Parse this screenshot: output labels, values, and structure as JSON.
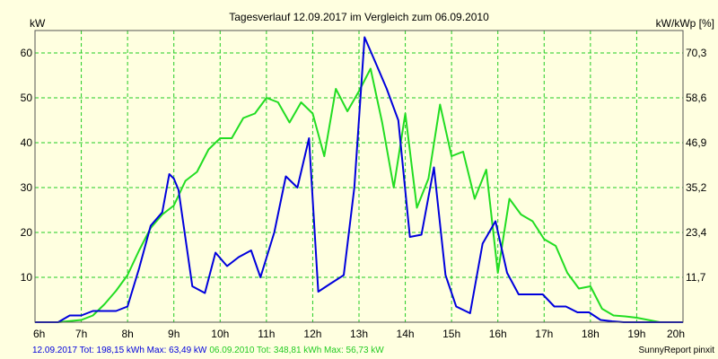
{
  "chart_data": {
    "type": "line",
    "title": "Tagesverlauf 12.09.2017 im Vergleich zum 06.09.2010",
    "ylabel_left": "kW",
    "ylabel_right": "kW/kWp [%]",
    "xlim": [
      6,
      20
    ],
    "ylim": [
      0,
      65
    ],
    "grid": true,
    "x_ticks": [
      {
        "value": 6,
        "label": "6h"
      },
      {
        "value": 7,
        "label": "7h"
      },
      {
        "value": 8,
        "label": "8h"
      },
      {
        "value": 9,
        "label": "9h"
      },
      {
        "value": 10,
        "label": "10h"
      },
      {
        "value": 11,
        "label": "11h"
      },
      {
        "value": 12,
        "label": "12h"
      },
      {
        "value": 13,
        "label": "13h"
      },
      {
        "value": 14,
        "label": "14h"
      },
      {
        "value": 15,
        "label": "15h"
      },
      {
        "value": 16,
        "label": "16h"
      },
      {
        "value": 17,
        "label": "17h"
      },
      {
        "value": 18,
        "label": "18h"
      },
      {
        "value": 19,
        "label": "19h"
      },
      {
        "value": 20,
        "label": "20h"
      }
    ],
    "y_ticks_left": [
      {
        "value": 10,
        "label": "10"
      },
      {
        "value": 20,
        "label": "20"
      },
      {
        "value": 30,
        "label": "30"
      },
      {
        "value": 40,
        "label": "40"
      },
      {
        "value": 50,
        "label": "50"
      },
      {
        "value": 60,
        "label": "60"
      }
    ],
    "y_ticks_right": [
      {
        "value": 10,
        "label": "11,7"
      },
      {
        "value": 20,
        "label": "23,4"
      },
      {
        "value": 30,
        "label": "35,2"
      },
      {
        "value": 40,
        "label": "46,9"
      },
      {
        "value": 50,
        "label": "58,6"
      },
      {
        "value": 60,
        "label": "70,3"
      }
    ],
    "series": [
      {
        "name": "12.09.2017",
        "color": "#0000dd",
        "x": [
          6.0,
          6.5,
          6.75,
          7.0,
          7.25,
          7.5,
          7.75,
          8.0,
          8.25,
          8.5,
          8.75,
          8.9,
          9.0,
          9.1,
          9.4,
          9.67,
          9.9,
          10.15,
          10.4,
          10.67,
          10.87,
          11.17,
          11.42,
          11.67,
          11.92,
          12.12,
          12.37,
          12.67,
          12.9,
          13.12,
          13.35,
          13.6,
          13.85,
          14.1,
          14.35,
          14.62,
          14.87,
          15.1,
          15.4,
          15.67,
          15.95,
          16.2,
          16.45,
          16.7,
          16.97,
          17.22,
          17.47,
          17.72,
          17.97,
          18.22,
          18.47,
          18.72,
          18.97,
          19.22,
          19.47,
          19.72,
          20.0
        ],
        "values": [
          0,
          0,
          1.5,
          1.5,
          2.5,
          2.5,
          2.5,
          3.5,
          12,
          21.5,
          24.5,
          33,
          32,
          29.5,
          8,
          6.5,
          15.5,
          12.5,
          14.5,
          16,
          10,
          20,
          32.5,
          30,
          41,
          6.8,
          8.5,
          10.5,
          30,
          63.5,
          58,
          52,
          45,
          19,
          19.5,
          34.5,
          10.5,
          3.5,
          2,
          17.5,
          22.5,
          11,
          6.2,
          6.2,
          6.2,
          3.5,
          3.5,
          2.2,
          2.2,
          0.5,
          0.2,
          0,
          0,
          0,
          0,
          0,
          0
        ]
      },
      {
        "name": "06.09.2010",
        "color": "#22dd22",
        "x": [
          6.0,
          6.5,
          7.0,
          7.25,
          7.5,
          7.75,
          8.0,
          8.25,
          8.5,
          8.75,
          9.0,
          9.25,
          9.5,
          9.75,
          10.0,
          10.25,
          10.5,
          10.75,
          11.0,
          11.25,
          11.5,
          11.75,
          12.0,
          12.25,
          12.5,
          12.75,
          13.0,
          13.25,
          13.5,
          13.75,
          14.0,
          14.25,
          14.5,
          14.75,
          15.0,
          15.25,
          15.5,
          15.75,
          16.0,
          16.25,
          16.5,
          16.75,
          17.0,
          17.25,
          17.5,
          17.75,
          18.0,
          18.25,
          18.5,
          18.75,
          19.0,
          19.25,
          19.5,
          19.75,
          20.0
        ],
        "values": [
          0,
          0,
          0.5,
          1.5,
          4,
          7,
          10.5,
          16,
          21,
          24,
          26,
          31.5,
          33.5,
          38.5,
          41,
          41,
          45.5,
          46.5,
          50,
          49,
          44.5,
          49,
          46.5,
          37,
          52,
          47,
          51.5,
          56.5,
          44.5,
          30,
          46.5,
          25.5,
          32,
          48.5,
          37,
          38,
          27.5,
          34,
          11,
          27.5,
          24,
          22.5,
          18.5,
          17,
          11,
          7.5,
          8,
          3,
          1.5,
          1.3,
          1,
          0.5,
          0,
          0,
          0
        ]
      }
    ],
    "footer": {
      "left_2017": "12.09.2017 Tot: 198,15 kWh Max: 63,49 kW",
      "left_2010": "06.09.2010 Tot: 348,81 kWh Max: 56,73 kW",
      "right": "SunnyReport pinxit"
    }
  }
}
